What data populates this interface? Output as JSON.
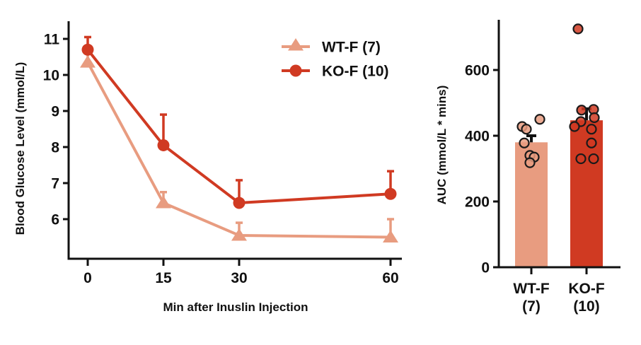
{
  "chart_data": [
    {
      "type": "line",
      "title": "",
      "xlabel": "Min after Inuslin Injection",
      "ylabel": "Blood Glucose Level (mmol/L)",
      "x": [
        0,
        15,
        30,
        60
      ],
      "x_tick_labels": [
        "0",
        "15",
        "30",
        "60"
      ],
      "y_ticks": [
        6,
        7,
        8,
        9,
        10,
        11
      ],
      "y_tick_labels": [
        "6",
        "7",
        "8",
        "9",
        "10",
        "11"
      ],
      "ylim": [
        5.0,
        11.5
      ],
      "grid": false,
      "legend_position": "top-right",
      "series": [
        {
          "name": "WT-F (7)",
          "marker": "triangle",
          "color": "#E89C80",
          "values": [
            10.35,
            6.45,
            5.55,
            5.5
          ],
          "error_upper": [
            10.7,
            6.75,
            5.9,
            6.0
          ]
        },
        {
          "name": "KO-F (10)",
          "marker": "circle",
          "color": "#D03A22",
          "values": [
            10.7,
            8.05,
            6.45,
            6.7
          ],
          "error_upper": [
            11.05,
            8.9,
            7.08,
            7.33
          ]
        }
      ]
    },
    {
      "type": "bar",
      "title": "",
      "xlabel": "",
      "ylabel": "AUC (mmol/L * mins)",
      "categories": [
        "WT-F\n(7)",
        "KO-F\n(10)"
      ],
      "category_lines": [
        [
          "WT-F",
          "(7)"
        ],
        [
          "KO-F",
          "(10)"
        ]
      ],
      "colors": [
        "#E89C80",
        "#D03A22"
      ],
      "values": [
        380,
        447
      ],
      "error_upper": [
        400,
        482
      ],
      "y_ticks": [
        0,
        200,
        400,
        600
      ],
      "y_tick_labels": [
        "0",
        "200",
        "400",
        "600"
      ],
      "ylim": [
        0,
        750
      ],
      "grid": false,
      "points": [
        [
          450,
          428,
          420,
          378,
          340,
          335,
          318
        ],
        [
          725,
          480,
          478,
          455,
          443,
          428,
          420,
          378,
          330,
          330
        ]
      ]
    }
  ]
}
